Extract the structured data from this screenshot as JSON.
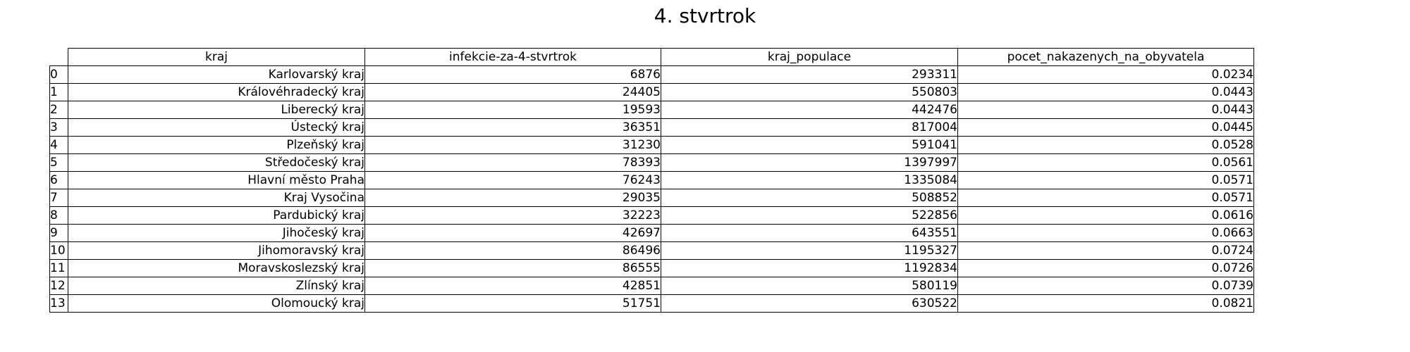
{
  "chart_data": {
    "type": "table",
    "title": "4. stvrtrok",
    "columns": [
      "kraj",
      "infekcie-za-4-stvrtrok",
      "kraj_populace",
      "pocet_nakazenych_na_obyvatela"
    ],
    "rows": [
      {
        "index": "0",
        "kraj": "Karlovarský kraj",
        "infekcie": "6876",
        "populace": "293311",
        "pocet": "0.0234"
      },
      {
        "index": "1",
        "kraj": "Královéhradecký kraj",
        "infekcie": "24405",
        "populace": "550803",
        "pocet": "0.0443"
      },
      {
        "index": "2",
        "kraj": "Liberecký kraj",
        "infekcie": "19593",
        "populace": "442476",
        "pocet": "0.0443"
      },
      {
        "index": "3",
        "kraj": "Ústecký kraj",
        "infekcie": "36351",
        "populace": "817004",
        "pocet": "0.0445"
      },
      {
        "index": "4",
        "kraj": "Plzeňský kraj",
        "infekcie": "31230",
        "populace": "591041",
        "pocet": "0.0528"
      },
      {
        "index": "5",
        "kraj": "Středočeský kraj",
        "infekcie": "78393",
        "populace": "1397997",
        "pocet": "0.0561"
      },
      {
        "index": "6",
        "kraj": "Hlavní město Praha",
        "infekcie": "76243",
        "populace": "1335084",
        "pocet": "0.0571"
      },
      {
        "index": "7",
        "kraj": "Kraj Vysočina",
        "infekcie": "29035",
        "populace": "508852",
        "pocet": "0.0571"
      },
      {
        "index": "8",
        "kraj": "Pardubický kraj",
        "infekcie": "32223",
        "populace": "522856",
        "pocet": "0.0616"
      },
      {
        "index": "9",
        "kraj": "Jihočeský kraj",
        "infekcie": "42697",
        "populace": "643551",
        "pocet": "0.0663"
      },
      {
        "index": "10",
        "kraj": "Jihomoravský kraj",
        "infekcie": "86496",
        "populace": "1195327",
        "pocet": "0.0724"
      },
      {
        "index": "11",
        "kraj": "Moravskoslezský kraj",
        "infekcie": "86555",
        "populace": "1192834",
        "pocet": "0.0726"
      },
      {
        "index": "12",
        "kraj": "Zlínský kraj",
        "infekcie": "42851",
        "populace": "580119",
        "pocet": "0.0739"
      },
      {
        "index": "13",
        "kraj": "Olomoucký kraj",
        "infekcie": "51751",
        "populace": "630522",
        "pocet": "0.0821"
      }
    ]
  }
}
